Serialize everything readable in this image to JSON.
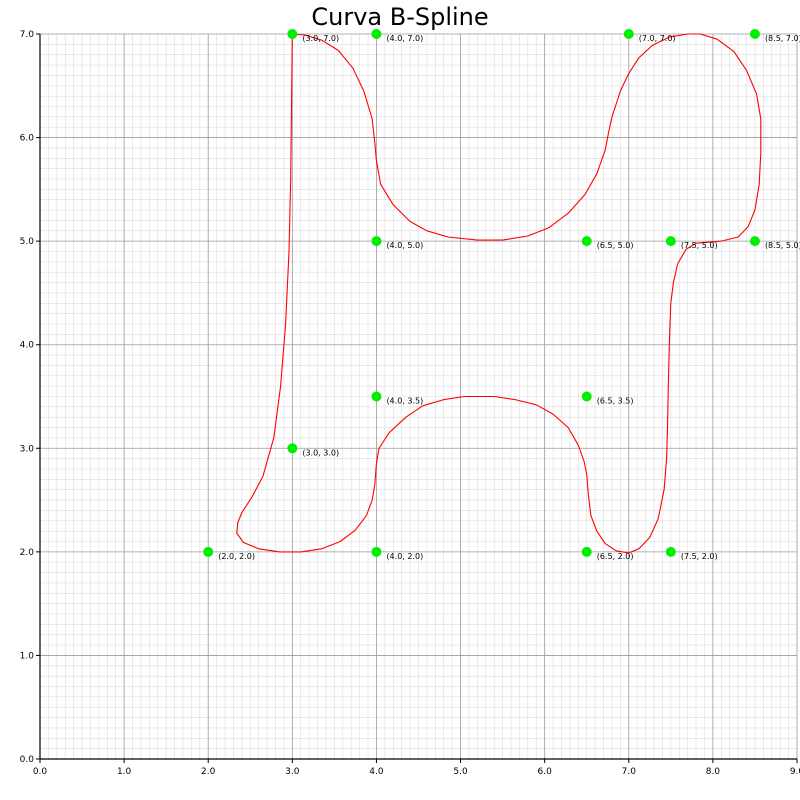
{
  "chart_data": {
    "type": "line",
    "title": "Curva B-Spline",
    "xlabel": "",
    "ylabel": "",
    "xlim": [
      0,
      9
    ],
    "ylim": [
      0,
      7
    ],
    "grid": {
      "major": true,
      "minor": true
    },
    "colors": {
      "curve": "#ff0000",
      "control_points": "#00ee00",
      "major_grid": "#9a9a9a",
      "minor_grid": "#dcdcdc",
      "axis": "#000000"
    },
    "x_ticks": [
      {
        "value": 0,
        "label": "0.0"
      },
      {
        "value": 1,
        "label": "1.0"
      },
      {
        "value": 2,
        "label": "2.0"
      },
      {
        "value": 3,
        "label": "3.0"
      },
      {
        "value": 4,
        "label": "4.0"
      },
      {
        "value": 5,
        "label": "5.0"
      },
      {
        "value": 6,
        "label": "6.0"
      },
      {
        "value": 7,
        "label": "7.0"
      },
      {
        "value": 8,
        "label": "8.0"
      },
      {
        "value": 9,
        "label": "9.0"
      }
    ],
    "y_ticks": [
      {
        "value": 0,
        "label": "0.0"
      },
      {
        "value": 1,
        "label": "1.0"
      },
      {
        "value": 2,
        "label": "2.0"
      },
      {
        "value": 3,
        "label": "3.0"
      },
      {
        "value": 4,
        "label": "4.0"
      },
      {
        "value": 5,
        "label": "5.0"
      },
      {
        "value": 6,
        "label": "6.0"
      },
      {
        "value": 7,
        "label": "7.0"
      }
    ],
    "control_points": [
      {
        "x": 3.0,
        "y": 7.0,
        "label": "(3.0, 7.0)"
      },
      {
        "x": 4.0,
        "y": 7.0,
        "label": "(4.0, 7.0)"
      },
      {
        "x": 7.0,
        "y": 7.0,
        "label": "(7.0, 7.0)"
      },
      {
        "x": 8.5,
        "y": 7.0,
        "label": "(8.5, 7.0)"
      },
      {
        "x": 4.0,
        "y": 5.0,
        "label": "(4.0, 5.0)"
      },
      {
        "x": 6.5,
        "y": 5.0,
        "label": "(6.5, 5.0)"
      },
      {
        "x": 7.5,
        "y": 5.0,
        "label": "(7.5, 5.0)"
      },
      {
        "x": 8.5,
        "y": 5.0,
        "label": "(8.5, 5.0)"
      },
      {
        "x": 4.0,
        "y": 3.5,
        "label": "(4.0, 3.5)"
      },
      {
        "x": 6.5,
        "y": 3.5,
        "label": "(6.5, 3.5)"
      },
      {
        "x": 3.0,
        "y": 3.0,
        "label": "(3.0, 3.0)"
      },
      {
        "x": 2.0,
        "y": 2.0,
        "label": "(2.0, 2.0)"
      },
      {
        "x": 4.0,
        "y": 2.0,
        "label": "(4.0, 2.0)"
      },
      {
        "x": 6.5,
        "y": 2.0,
        "label": "(6.5, 2.0)"
      },
      {
        "x": 7.5,
        "y": 2.0,
        "label": "(7.5, 2.0)"
      }
    ],
    "curve": [
      [
        3.0,
        7.0
      ],
      [
        3.15,
        6.99
      ],
      [
        3.35,
        6.94
      ],
      [
        3.55,
        6.84
      ],
      [
        3.72,
        6.67
      ],
      [
        3.85,
        6.45
      ],
      [
        3.95,
        6.18
      ],
      [
        3.98,
        5.95
      ],
      [
        4.0,
        5.78
      ],
      [
        4.05,
        5.55
      ],
      [
        4.2,
        5.35
      ],
      [
        4.4,
        5.19
      ],
      [
        4.6,
        5.1
      ],
      [
        4.85,
        5.04
      ],
      [
        5.2,
        5.01
      ],
      [
        5.5,
        5.01
      ],
      [
        5.8,
        5.05
      ],
      [
        6.05,
        5.13
      ],
      [
        6.28,
        5.27
      ],
      [
        6.48,
        5.45
      ],
      [
        6.62,
        5.65
      ],
      [
        6.72,
        5.88
      ],
      [
        6.76,
        6.05
      ],
      [
        6.8,
        6.2
      ],
      [
        6.9,
        6.45
      ],
      [
        7.0,
        6.62
      ],
      [
        7.12,
        6.77
      ],
      [
        7.28,
        6.89
      ],
      [
        7.48,
        6.97
      ],
      [
        7.7,
        7.0
      ],
      [
        7.85,
        7.0
      ],
      [
        8.05,
        6.95
      ],
      [
        8.25,
        6.83
      ],
      [
        8.4,
        6.65
      ],
      [
        8.52,
        6.42
      ],
      [
        8.57,
        6.18
      ],
      [
        8.57,
        5.85
      ],
      [
        8.55,
        5.55
      ],
      [
        8.5,
        5.3
      ],
      [
        8.42,
        5.14
      ],
      [
        8.3,
        5.04
      ],
      [
        8.1,
        5.0
      ],
      [
        7.95,
        4.99
      ],
      [
        7.8,
        4.98
      ],
      [
        7.68,
        4.92
      ],
      [
        7.58,
        4.78
      ],
      [
        7.53,
        4.6
      ],
      [
        7.5,
        4.4
      ],
      [
        7.49,
        4.2
      ],
      [
        7.48,
        3.95
      ],
      [
        7.47,
        3.6
      ],
      [
        7.46,
        3.2
      ],
      [
        7.45,
        2.9
      ],
      [
        7.42,
        2.6
      ],
      [
        7.35,
        2.32
      ],
      [
        7.25,
        2.14
      ],
      [
        7.12,
        2.03
      ],
      [
        7.0,
        1.99
      ],
      [
        6.85,
        2.01
      ],
      [
        6.72,
        2.08
      ],
      [
        6.62,
        2.2
      ],
      [
        6.55,
        2.35
      ],
      [
        6.52,
        2.55
      ],
      [
        6.5,
        2.75
      ],
      [
        6.47,
        2.87
      ],
      [
        6.4,
        3.03
      ],
      [
        6.28,
        3.2
      ],
      [
        6.1,
        3.33
      ],
      [
        5.9,
        3.42
      ],
      [
        5.65,
        3.47
      ],
      [
        5.4,
        3.5
      ],
      [
        5.05,
        3.5
      ],
      [
        4.8,
        3.47
      ],
      [
        4.55,
        3.41
      ],
      [
        4.35,
        3.3
      ],
      [
        4.15,
        3.15
      ],
      [
        4.03,
        3.0
      ],
      [
        4.0,
        2.85
      ],
      [
        3.98,
        2.65
      ],
      [
        3.95,
        2.5
      ],
      [
        3.88,
        2.35
      ],
      [
        3.75,
        2.21
      ],
      [
        3.57,
        2.1
      ],
      [
        3.35,
        2.03
      ],
      [
        3.1,
        2.0
      ],
      [
        2.85,
        2.0
      ],
      [
        2.6,
        2.03
      ],
      [
        2.42,
        2.09
      ],
      [
        2.34,
        2.18
      ],
      [
        2.35,
        2.28
      ],
      [
        2.4,
        2.38
      ],
      [
        2.52,
        2.53
      ],
      [
        2.65,
        2.73
      ],
      [
        2.78,
        3.1
      ],
      [
        2.86,
        3.6
      ],
      [
        2.92,
        4.2
      ],
      [
        2.96,
        4.9
      ],
      [
        2.98,
        5.6
      ],
      [
        2.99,
        6.3
      ],
      [
        3.0,
        7.0
      ]
    ]
  }
}
